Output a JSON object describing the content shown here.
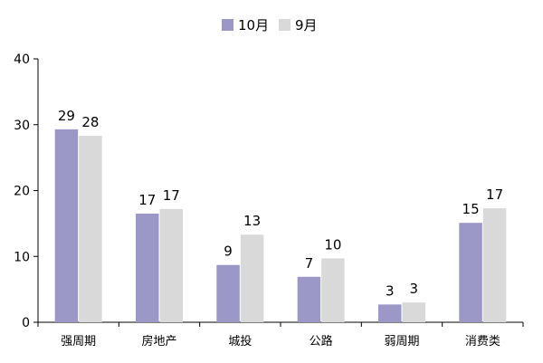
{
  "chart_data": {
    "type": "bar",
    "categories": [
      "强周期",
      "房地产",
      "城投",
      "公路",
      "弱周期",
      "消费类"
    ],
    "series": [
      {
        "name": "10月",
        "values": [
          29,
          17,
          9,
          7,
          3,
          15
        ],
        "display_values": [
          29.3,
          16.5,
          8.7,
          6.9,
          2.7,
          15.1
        ],
        "color": "#9b98c8"
      },
      {
        "name": "9月",
        "values": [
          28,
          17,
          13,
          10,
          3,
          17
        ],
        "display_values": [
          28.3,
          17.2,
          13.3,
          9.7,
          3.0,
          17.3
        ],
        "color": "#d9d9d9"
      }
    ],
    "ylim": [
      0,
      40
    ],
    "yticks": [
      0,
      10,
      20,
      30,
      40
    ],
    "title": "",
    "xlabel": "",
    "ylabel": "",
    "legend_position": "top-center",
    "grid": false
  }
}
